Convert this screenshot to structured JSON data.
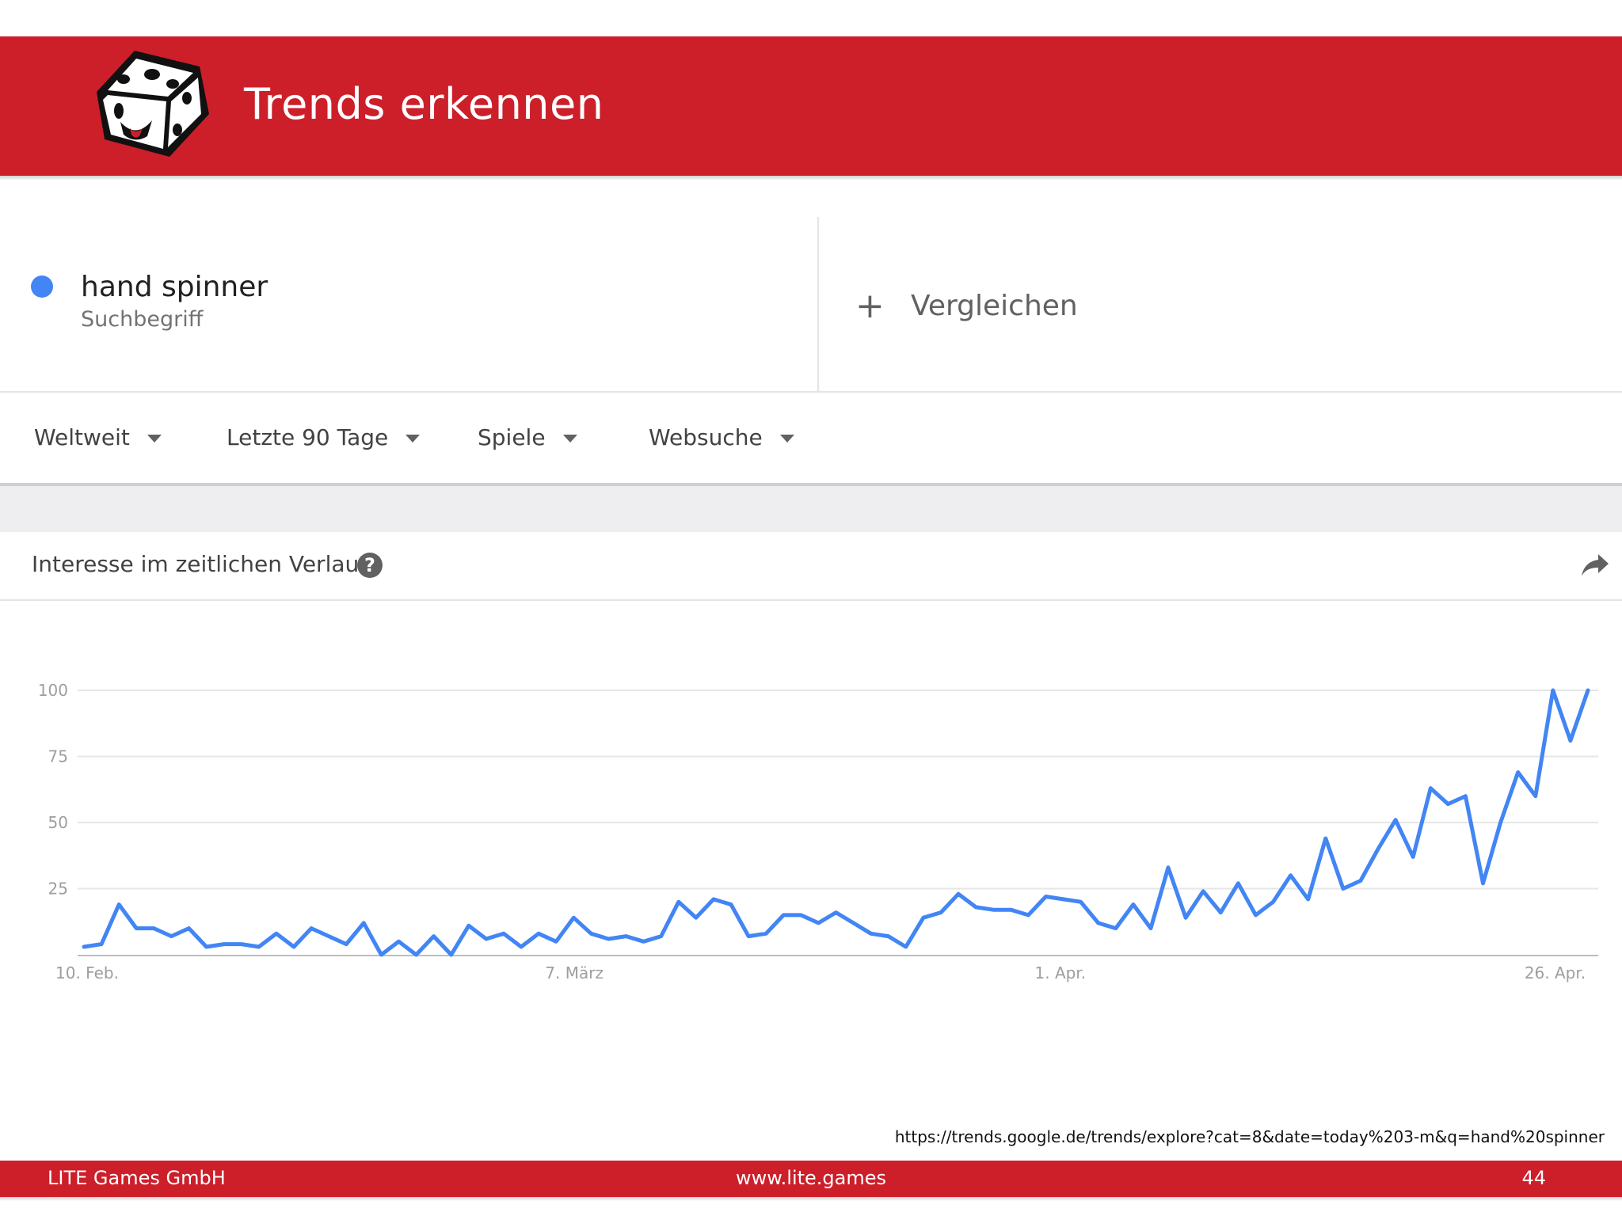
{
  "slide": {
    "title": "Trends erkennen",
    "logo_icon": "dice-logo-icon",
    "source_url": "https://trends.google.de/trends/explore?cat=8&date=today%203-m&q=hand%20spinner",
    "footer_company": "LITE Games GmbH",
    "footer_website": "www.lite.games",
    "page_number": "44",
    "accent_color": "#cc1f2a"
  },
  "search_term": {
    "name": "hand spinner",
    "type": "Suchbegriff",
    "color": "#4285f4"
  },
  "compare": {
    "label": "Vergleichen",
    "icon": "plus-icon"
  },
  "filters": [
    {
      "label": "Weltweit"
    },
    {
      "label": "Letzte 90 Tage"
    },
    {
      "label": "Spiele"
    },
    {
      "label": "Websuche"
    }
  ],
  "card": {
    "title": "Interesse im zeitlichen Verlauf",
    "help_icon": "help-icon",
    "share_icon": "share-icon"
  },
  "chart_data": {
    "type": "line",
    "x_tick_labels": [
      "10. Feb.",
      "7. März",
      "1. Apr.",
      "26. Apr."
    ],
    "y_ticks": [
      25,
      50,
      75,
      100
    ],
    "ylim": [
      0,
      100
    ],
    "grid": true,
    "color": "#4285f4",
    "values": [
      3,
      4,
      19,
      10,
      10,
      7,
      10,
      3,
      4,
      4,
      3,
      8,
      3,
      10,
      7,
      4,
      12,
      0,
      5,
      0,
      7,
      0,
      11,
      6,
      8,
      3,
      8,
      5,
      14,
      8,
      6,
      7,
      5,
      7,
      20,
      14,
      21,
      19,
      7,
      8,
      15,
      15,
      12,
      16,
      12,
      8,
      7,
      3,
      14,
      16,
      23,
      18,
      17,
      17,
      15,
      22,
      21,
      20,
      12,
      10,
      19,
      10,
      33,
      14,
      24,
      16,
      27,
      15,
      20,
      30,
      21,
      44,
      25,
      28,
      40,
      51,
      37,
      63,
      57,
      60,
      27,
      50,
      69,
      60,
      100,
      81,
      100
    ]
  }
}
